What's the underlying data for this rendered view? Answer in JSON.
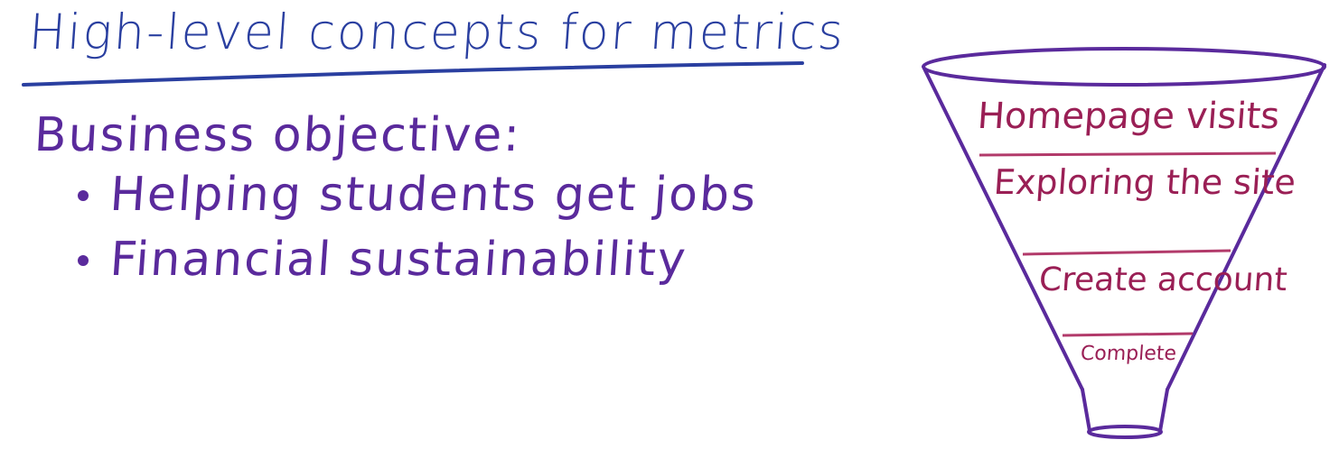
{
  "title": "High-level concepts for metrics",
  "objective": {
    "heading": "Business objective:",
    "items": [
      "Helping students get jobs",
      "Financial sustainability"
    ]
  },
  "funnel": {
    "stages": [
      "Homepage visits",
      "Exploring the site",
      "Create account",
      "Complete"
    ]
  },
  "colors": {
    "title": "#2a3fa0",
    "text": "#5a2a9c",
    "funnel_outline": "#5a2a9c",
    "funnel_labels": "#9a1f55",
    "funnel_dividers": "#b23a6a"
  }
}
